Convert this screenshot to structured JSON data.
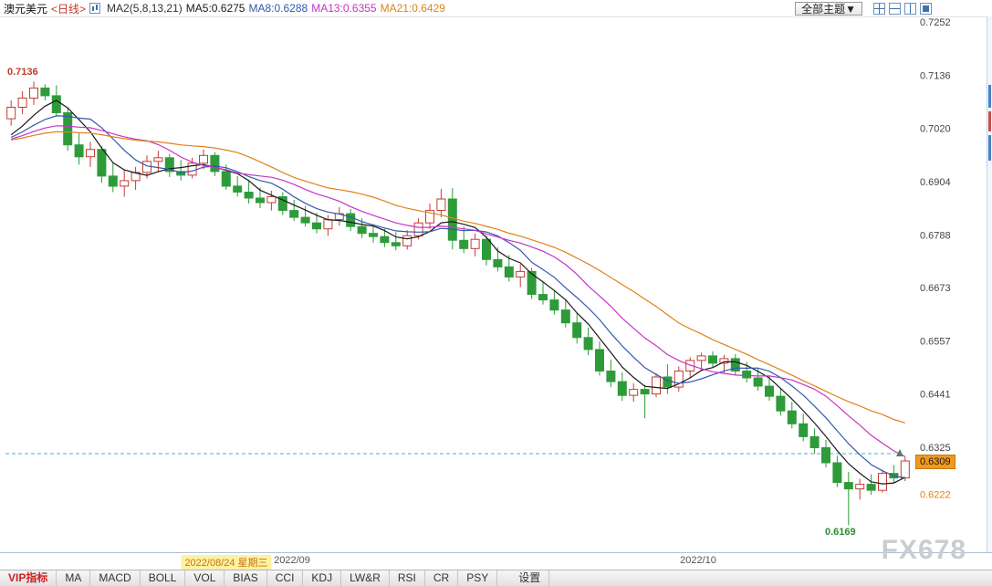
{
  "header": {
    "symbol": "澳元美元",
    "period": "<日线>",
    "ma_group": "MA2(5,8,13,21)",
    "ma_values": [
      {
        "label": "MA5:0.6275",
        "color": "#1a1a1a"
      },
      {
        "label": "MA8:0.6288",
        "color": "#3558b0"
      },
      {
        "label": "MA13:0.6355",
        "color": "#c733c7"
      },
      {
        "label": "MA21:0.6429",
        "color": "#e0821a"
      }
    ],
    "theme_button": "全部主题▼"
  },
  "toolbar": {
    "items": [
      {
        "label": "VIP指标",
        "color": "#cc2222"
      },
      {
        "label": "MA"
      },
      {
        "label": "MACD"
      },
      {
        "label": "BOLL"
      },
      {
        "label": "VOL"
      },
      {
        "label": "BIAS"
      },
      {
        "label": "CCI"
      },
      {
        "label": "KDJ"
      },
      {
        "label": "LW&R"
      },
      {
        "label": "RSI"
      },
      {
        "label": "CR"
      },
      {
        "label": "PSY"
      },
      {
        "label": "设置"
      }
    ]
  },
  "watermark": {
    "text": "FX678"
  },
  "chart_data": {
    "type": "candlestick",
    "title": "澳元美元 日线",
    "colors": {
      "up": "#c53b33",
      "down": "#2e9b3a",
      "ref_line": "#3db0e0",
      "current_price_bg": "#f09a1f",
      "high_label": "#c0392b",
      "low_label": "#2e8b2e"
    },
    "y_axis": {
      "min": 0.612,
      "max": 0.727,
      "labels": [
        {
          "text": "0.7252"
        },
        {
          "text": "0.7136"
        },
        {
          "text": "0.7020"
        },
        {
          "text": "0.6904"
        },
        {
          "text": "0.6788"
        },
        {
          "text": "0.6673"
        },
        {
          "text": "0.6557"
        },
        {
          "text": "0.6441"
        },
        {
          "text": "0.6325"
        },
        {
          "text": "0.6222",
          "color": "#e0821a"
        }
      ]
    },
    "x_axis": {
      "ticks": [
        {
          "label": "2022/08/24 星期三",
          "pos": 0.244,
          "highlight": true
        },
        {
          "label": "2022/09",
          "pos": 0.317
        },
        {
          "label": "2022/10",
          "pos": 0.765
        }
      ]
    },
    "reference_line": {
      "price": 0.6325
    },
    "current_price": {
      "value": "0.6309"
    },
    "annotations": {
      "high": {
        "text": "0.7136"
      },
      "low": {
        "text": "0.6169"
      }
    },
    "ma_lines": [
      {
        "period": 5,
        "color": "#1a1a1a"
      },
      {
        "period": 8,
        "color": "#3558b0"
      },
      {
        "period": 13,
        "color": "#c733c7"
      },
      {
        "period": 21,
        "color": "#e0821a"
      }
    ],
    "prehistory_price": 0.7005,
    "candles": [
      [
        0.7055,
        0.7095,
        0.704,
        0.708
      ],
      [
        0.708,
        0.7115,
        0.7065,
        0.71
      ],
      [
        0.71,
        0.7136,
        0.7085,
        0.7122
      ],
      [
        0.7122,
        0.713,
        0.7095,
        0.7105
      ],
      [
        0.7105,
        0.7128,
        0.706,
        0.7068
      ],
      [
        0.7068,
        0.708,
        0.6985,
        0.6998
      ],
      [
        0.6998,
        0.7025,
        0.6955,
        0.6972
      ],
      [
        0.6972,
        0.7005,
        0.695,
        0.6988
      ],
      [
        0.6988,
        0.6995,
        0.6915,
        0.693
      ],
      [
        0.693,
        0.696,
        0.6895,
        0.6908
      ],
      [
        0.6908,
        0.6945,
        0.6885,
        0.692
      ],
      [
        0.692,
        0.695,
        0.69,
        0.6938
      ],
      [
        0.6938,
        0.6975,
        0.6925,
        0.6962
      ],
      [
        0.6962,
        0.6985,
        0.694,
        0.697
      ],
      [
        0.697,
        0.6978,
        0.6928,
        0.694
      ],
      [
        0.694,
        0.6965,
        0.692,
        0.6932
      ],
      [
        0.6932,
        0.697,
        0.6925,
        0.6958
      ],
      [
        0.6958,
        0.6988,
        0.6945,
        0.6975
      ],
      [
        0.6975,
        0.6982,
        0.693,
        0.694
      ],
      [
        0.694,
        0.6955,
        0.69,
        0.6908
      ],
      [
        0.6908,
        0.693,
        0.6885,
        0.6895
      ],
      [
        0.6895,
        0.692,
        0.687,
        0.6882
      ],
      [
        0.6882,
        0.6905,
        0.686,
        0.6872
      ],
      [
        0.6872,
        0.6898,
        0.6855,
        0.6885
      ],
      [
        0.6885,
        0.6895,
        0.6845,
        0.6855
      ],
      [
        0.6855,
        0.6878,
        0.6832,
        0.684
      ],
      [
        0.684,
        0.6865,
        0.682,
        0.6828
      ],
      [
        0.6828,
        0.685,
        0.6805,
        0.6815
      ],
      [
        0.6815,
        0.6845,
        0.68,
        0.6835
      ],
      [
        0.6835,
        0.6862,
        0.6822,
        0.6848
      ],
      [
        0.6848,
        0.6858,
        0.681,
        0.682
      ],
      [
        0.682,
        0.6838,
        0.6795,
        0.6805
      ],
      [
        0.6805,
        0.6825,
        0.6785,
        0.6798
      ],
      [
        0.6798,
        0.6815,
        0.6775,
        0.6785
      ],
      [
        0.6785,
        0.6808,
        0.6768,
        0.6778
      ],
      [
        0.6778,
        0.6812,
        0.677,
        0.68
      ],
      [
        0.68,
        0.6838,
        0.6792,
        0.6828
      ],
      [
        0.6828,
        0.687,
        0.6815,
        0.6855
      ],
      [
        0.6855,
        0.6902,
        0.684,
        0.688
      ],
      [
        0.688,
        0.6904,
        0.677,
        0.679
      ],
      [
        0.679,
        0.682,
        0.6762,
        0.6772
      ],
      [
        0.6772,
        0.6805,
        0.6755,
        0.6792
      ],
      [
        0.6792,
        0.68,
        0.6735,
        0.6748
      ],
      [
        0.6748,
        0.6775,
        0.6722,
        0.6732
      ],
      [
        0.6732,
        0.6758,
        0.67,
        0.671
      ],
      [
        0.671,
        0.6738,
        0.6688,
        0.6722
      ],
      [
        0.6722,
        0.673,
        0.6662,
        0.6672
      ],
      [
        0.6672,
        0.67,
        0.665,
        0.666
      ],
      [
        0.666,
        0.668,
        0.6628,
        0.6638
      ],
      [
        0.6638,
        0.666,
        0.66,
        0.661
      ],
      [
        0.661,
        0.6632,
        0.6565,
        0.6578
      ],
      [
        0.6578,
        0.66,
        0.654,
        0.6552
      ],
      [
        0.6552,
        0.657,
        0.6495,
        0.6505
      ],
      [
        0.6505,
        0.653,
        0.647,
        0.6482
      ],
      [
        0.6482,
        0.6502,
        0.644,
        0.6452
      ],
      [
        0.6452,
        0.6478,
        0.6438,
        0.6465
      ],
      [
        0.6465,
        0.6475,
        0.6402,
        0.6455
      ],
      [
        0.6455,
        0.65,
        0.6448,
        0.6492
      ],
      [
        0.6492,
        0.652,
        0.6455,
        0.647
      ],
      [
        0.647,
        0.6515,
        0.646,
        0.6505
      ],
      [
        0.6505,
        0.6535,
        0.649,
        0.6528
      ],
      [
        0.6528,
        0.6545,
        0.6505,
        0.6538
      ],
      [
        0.6538,
        0.6548,
        0.6512,
        0.6522
      ],
      [
        0.6522,
        0.654,
        0.65,
        0.6532
      ],
      [
        0.6532,
        0.6542,
        0.6495,
        0.6505
      ],
      [
        0.6505,
        0.6525,
        0.648,
        0.649
      ],
      [
        0.649,
        0.6512,
        0.6462,
        0.6472
      ],
      [
        0.6472,
        0.6495,
        0.644,
        0.645
      ],
      [
        0.645,
        0.6468,
        0.6408,
        0.6418
      ],
      [
        0.6418,
        0.6438,
        0.638,
        0.639
      ],
      [
        0.639,
        0.6412,
        0.6352,
        0.6362
      ],
      [
        0.6362,
        0.638,
        0.6325,
        0.6338
      ],
      [
        0.6338,
        0.6355,
        0.6295,
        0.6305
      ],
      [
        0.6305,
        0.632,
        0.6252,
        0.6262
      ],
      [
        0.6262,
        0.6285,
        0.6169,
        0.6248
      ],
      [
        0.6248,
        0.627,
        0.6225,
        0.6258
      ],
      [
        0.6258,
        0.628,
        0.6235,
        0.6245
      ],
      [
        0.6245,
        0.629,
        0.624,
        0.6282
      ],
      [
        0.6282,
        0.63,
        0.6262,
        0.6272
      ],
      [
        0.6272,
        0.6318,
        0.6265,
        0.6309
      ]
    ]
  }
}
